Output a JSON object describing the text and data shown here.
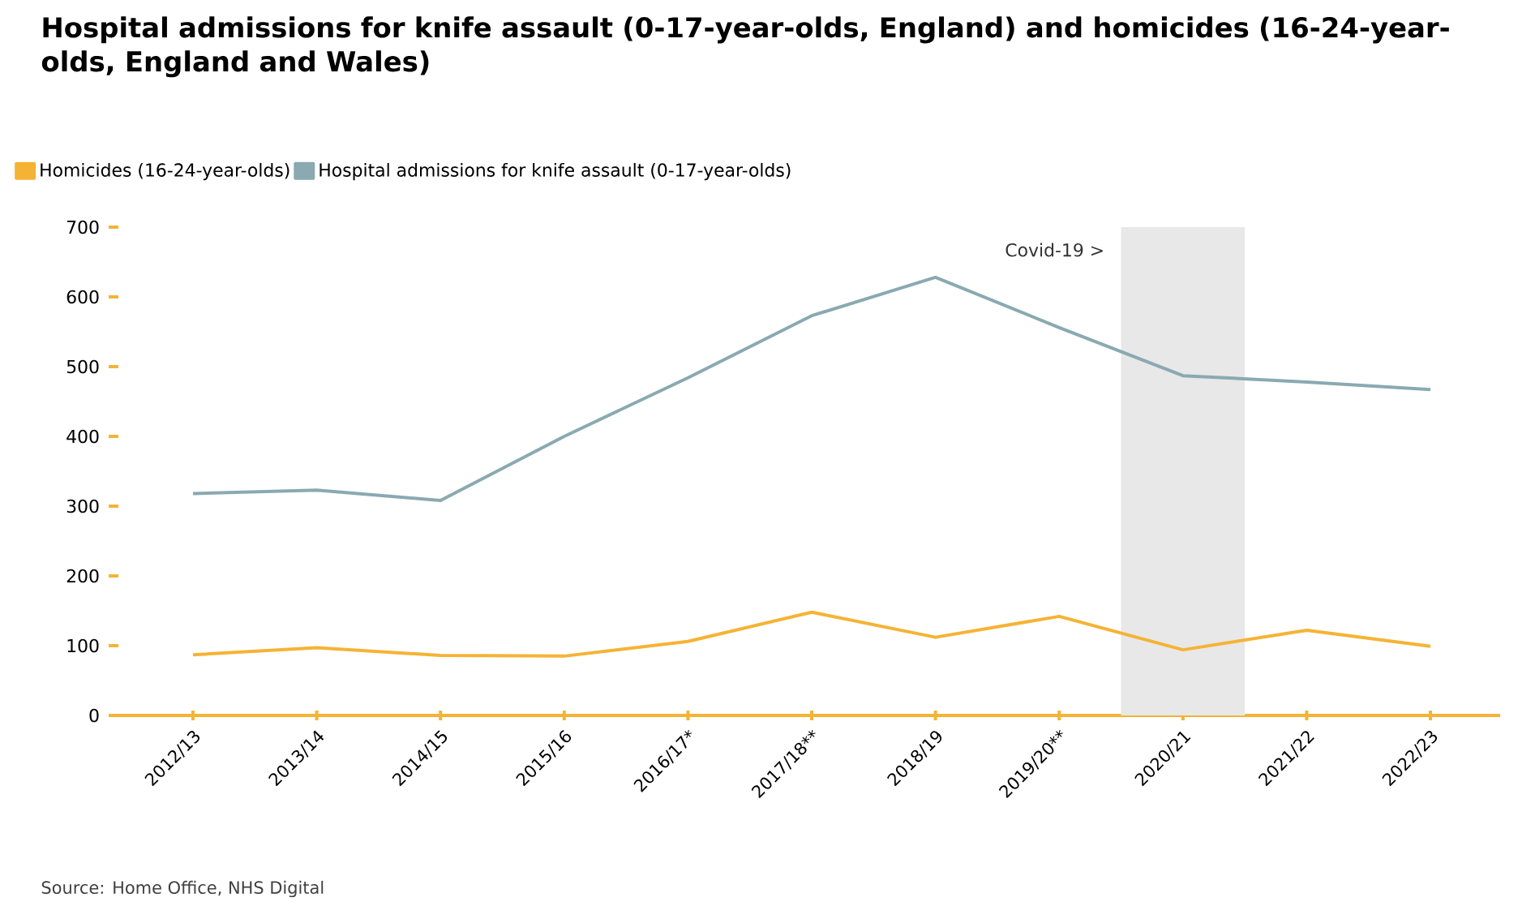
{
  "chart_data": {
    "type": "line",
    "title": "Hospital admissions for knife assault (0-17-year-olds, England) and homicides (16-24-year-olds, England and Wales)",
    "categories": [
      "2012/13",
      "2013/14",
      "2014/15",
      "2015/16",
      "2016/17*",
      "2017/18**",
      "2018/19",
      "2019/20**",
      "2020/21",
      "2021/22",
      "2022/23"
    ],
    "series": [
      {
        "name": "Homicides (16-24-year-olds)",
        "color": "#f5b335",
        "values": [
          87,
          97,
          86,
          85,
          106,
          148,
          112,
          142,
          94,
          122,
          99
        ]
      },
      {
        "name": "Hospital admissions for knife assault (0-17-year-olds)",
        "color": "#8aa9b1",
        "values": [
          318,
          323,
          308,
          400,
          484,
          573,
          628,
          556,
          487,
          478,
          467
        ]
      }
    ],
    "ylim": [
      0,
      700
    ],
    "yticks": [
      0,
      100,
      200,
      300,
      400,
      500,
      600,
      700
    ],
    "bands": [
      {
        "axis": "x",
        "from": "2020/21",
        "to": "2020/21",
        "label": "Covid-19 >",
        "color": "#e8e8e8"
      }
    ],
    "legend": "top left",
    "grid": false,
    "marker": "none",
    "line_style": "solid",
    "annotations": [
      "Source: Home Office, NHS Digital"
    ]
  }
}
